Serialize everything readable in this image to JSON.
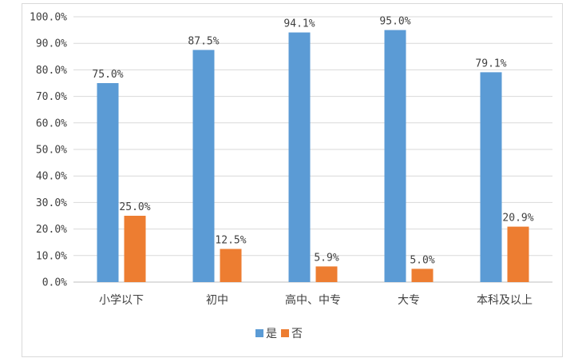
{
  "chart_data": {
    "type": "bar",
    "categories": [
      "小学以下",
      "初中",
      "高中、中专",
      "大专",
      "本科及以上"
    ],
    "series": [
      {
        "name": "是",
        "values": [
          75.0,
          87.5,
          94.1,
          95.0,
          79.1
        ],
        "color": "#5b9bd5"
      },
      {
        "name": "否",
        "values": [
          25.0,
          12.5,
          5.9,
          5.0,
          20.9
        ],
        "color": "#ed7d31"
      }
    ],
    "y_ticks": [
      "0.0%",
      "10.0%",
      "20.0%",
      "30.0%",
      "40.0%",
      "50.0%",
      "60.0%",
      "70.0%",
      "80.0%",
      "90.0%",
      "100.0%"
    ],
    "data_labels": [
      [
        "75.0%",
        "87.5%",
        "94.1%",
        "95.0%",
        "79.1%"
      ],
      [
        "25.0%",
        "12.5%",
        "5.9%",
        "5.0%",
        "20.9%"
      ]
    ],
    "ylim": [
      0,
      100
    ],
    "grid": true,
    "legend_position": "bottom",
    "title": "",
    "xlabel": "",
    "ylabel": ""
  }
}
